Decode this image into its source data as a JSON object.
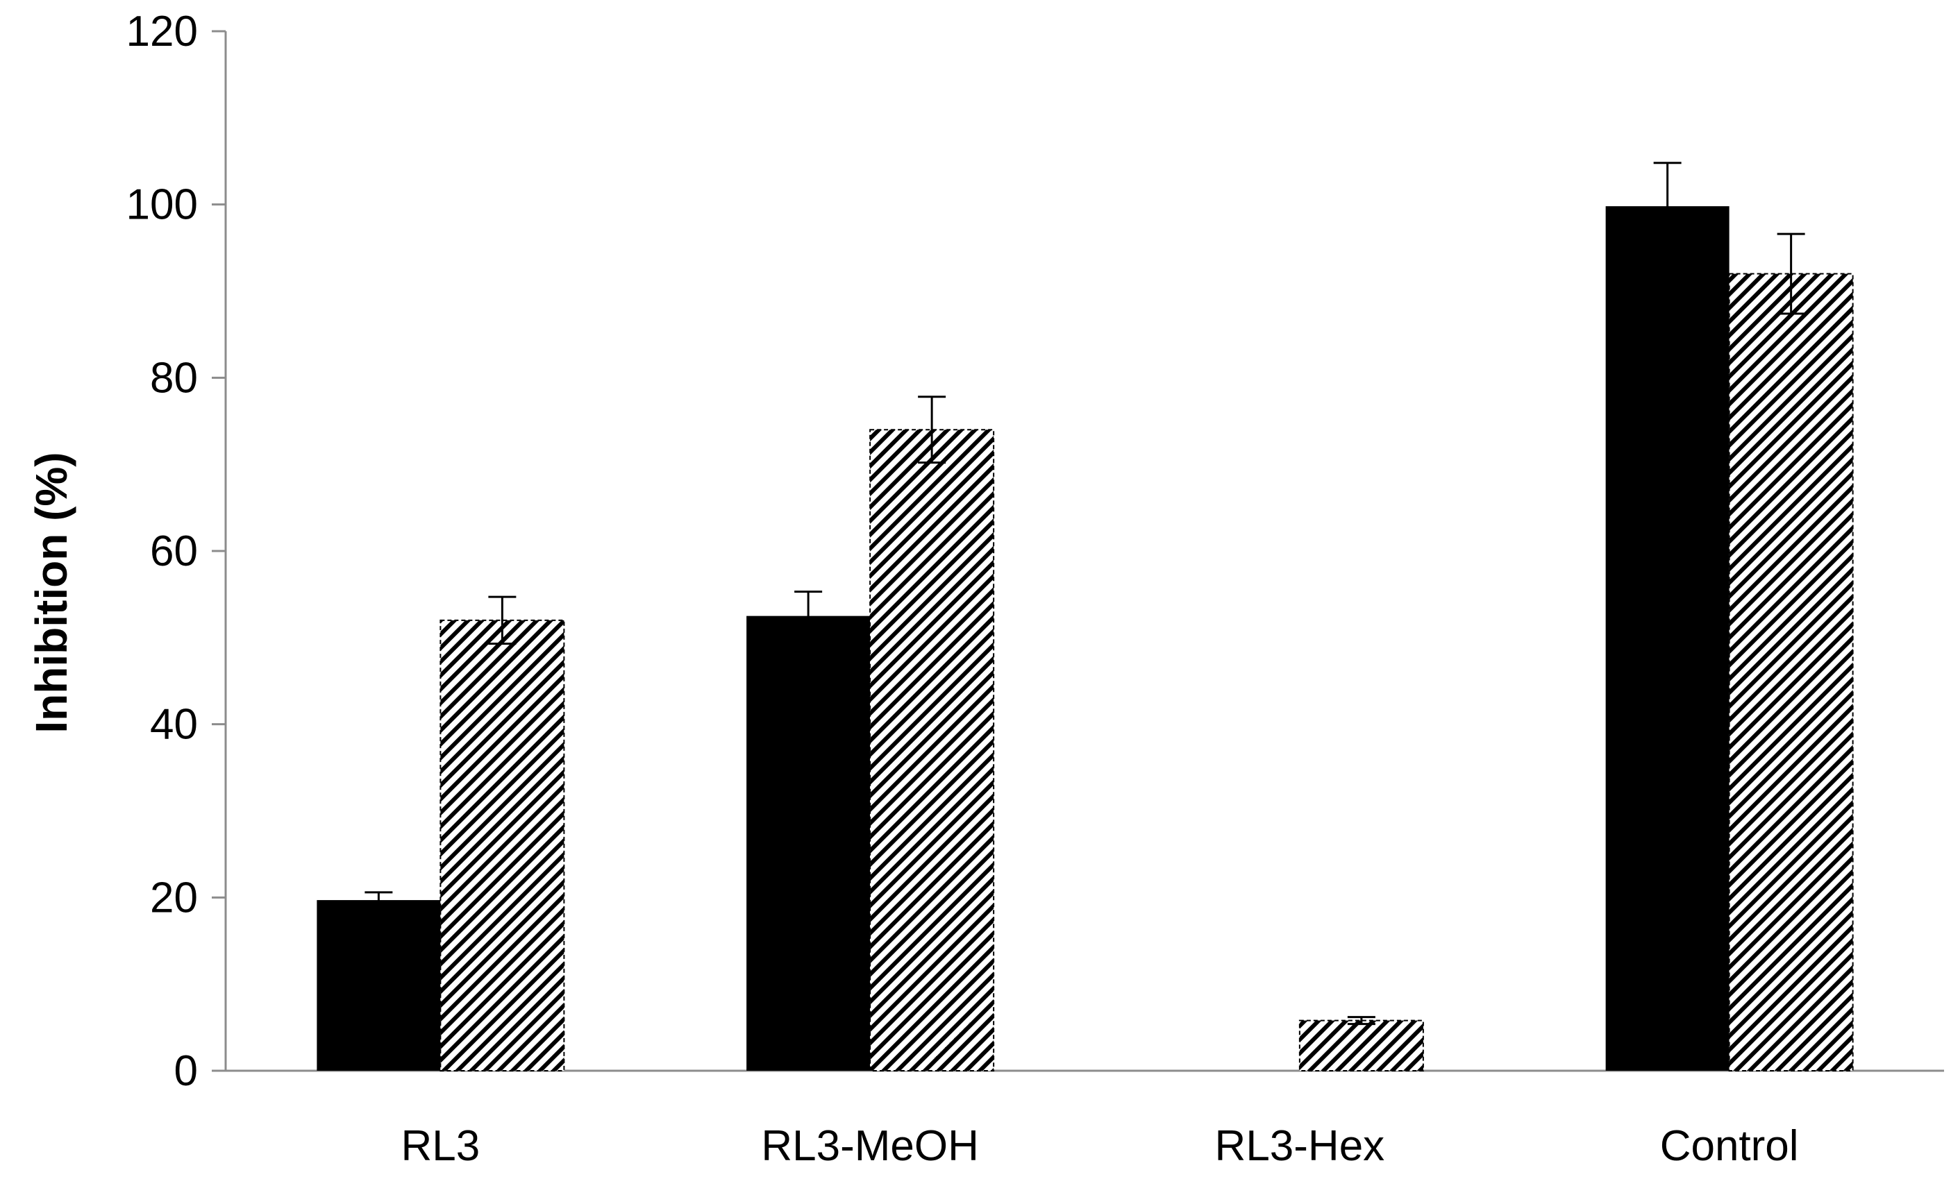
{
  "chart_data": {
    "type": "bar",
    "title": "",
    "xlabel": "",
    "ylabel": "Inhibition (%)",
    "ylim": [
      0,
      120
    ],
    "yticks": [
      0,
      20,
      40,
      60,
      80,
      100,
      120
    ],
    "categories": [
      "RL3",
      "RL3-MeOH",
      "RL3-Hex",
      "Control"
    ],
    "series": [
      {
        "style": "solid",
        "color": "#000000",
        "values": [
          19.7,
          52.5,
          0,
          99.8
        ],
        "errors": [
          0.9,
          2.8,
          0,
          5.0
        ]
      },
      {
        "style": "hatched",
        "color": "#000000",
        "values": [
          52.0,
          74.0,
          5.8,
          92.0
        ],
        "errors": [
          2.7,
          3.8,
          0.4,
          4.6
        ]
      }
    ],
    "grid": false,
    "legend": "none"
  }
}
